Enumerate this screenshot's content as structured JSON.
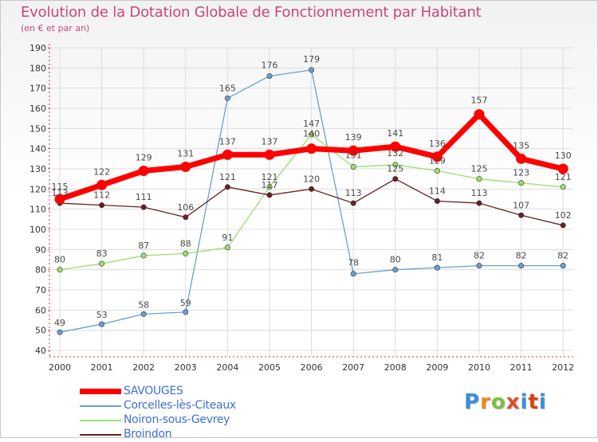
{
  "title": "Evolution de la Dotation Globale de Fonctionnement par Habitant",
  "subtitle": "(en € et par an)",
  "brand": {
    "text": "Proxiti"
  },
  "colors": {
    "savouges": "#ff0000",
    "corcelles": "#6a9fd0",
    "noiron": "#9be06c",
    "broindon": "#6b2020",
    "grid": "#dddddd",
    "axis": "#cc3333",
    "brand": [
      "#3a8fd9",
      "#f08a1c",
      "#7bc043",
      "#e04a2a",
      "#3a8fd9",
      "#d84315",
      "#3a8fd9"
    ]
  },
  "chart_data": {
    "type": "line",
    "title": "Evolution de la Dotation Globale de Fonctionnement par Habitant",
    "subtitle": "(en € et par an)",
    "xlabel": "",
    "ylabel": "",
    "ylim": [
      40,
      190
    ],
    "ytick_step": 10,
    "grid": true,
    "legend_position": "bottom-left",
    "categories": [
      "2000",
      "2001",
      "2002",
      "2003",
      "2004",
      "2005",
      "2006",
      "2007",
      "2008",
      "2009",
      "2010",
      "2011",
      "2012"
    ],
    "series": [
      {
        "name": "SAVOUGES",
        "key": "savouges",
        "values": [
          115,
          122,
          129,
          131,
          137,
          137,
          140,
          139,
          141,
          136,
          157,
          135,
          130
        ]
      },
      {
        "name": "Corcelles-lès-Citeaux",
        "key": "corcelles",
        "values": [
          49,
          53,
          58,
          59,
          165,
          176,
          179,
          78,
          80,
          81,
          82,
          82,
          82
        ]
      },
      {
        "name": "Noiron-sous-Gevrey",
        "key": "noiron",
        "values": [
          80,
          83,
          87,
          88,
          91,
          121,
          147,
          131,
          132,
          129,
          125,
          123,
          121
        ]
      },
      {
        "name": "Broindon",
        "key": "broindon",
        "values": [
          113,
          112,
          111,
          106,
          121,
          117,
          120,
          113,
          125,
          114,
          113,
          107,
          102
        ]
      }
    ]
  }
}
